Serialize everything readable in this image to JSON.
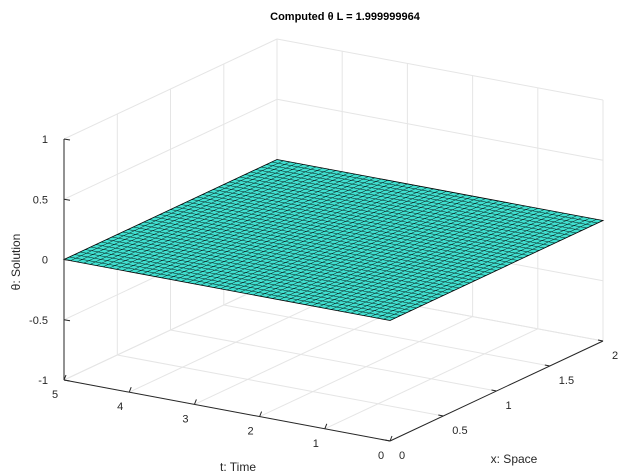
{
  "chart_data": {
    "type": "surface",
    "title": "Computed θ L = 1.999999964",
    "xlabel": "x: Space",
    "ylabel": "t: Time",
    "zlabel": "θ: Solution",
    "xlim": [
      0,
      2
    ],
    "ylim": [
      0,
      5
    ],
    "zlim": [
      -1,
      1
    ],
    "x_ticks": [
      "0",
      "0.5",
      "1",
      "1.5",
      "2"
    ],
    "y_ticks": [
      "0",
      "1",
      "2",
      "3",
      "4",
      "5"
    ],
    "z_ticks": [
      "-1",
      "-0.5",
      "0",
      "0.5",
      "1"
    ],
    "surface_value": 0,
    "grid": true,
    "colors": {
      "surface": "#40e0d0",
      "mesh": "#000000",
      "grid": "#e5e5e5",
      "axis": "#262626"
    }
  }
}
